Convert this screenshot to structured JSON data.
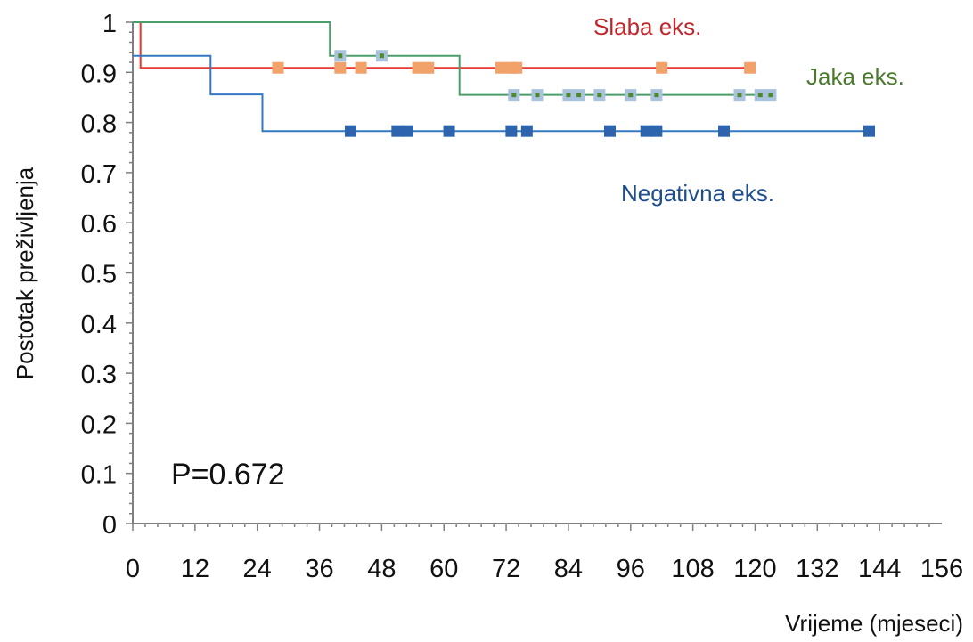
{
  "chart_data": {
    "type": "line",
    "title": "",
    "xlabel": "Vrijeme (mjeseci)",
    "ylabel": "Postotak preživljenja",
    "xlim": [
      0,
      156
    ],
    "ylim": [
      0,
      1
    ],
    "xticks": [
      0,
      12,
      24,
      36,
      48,
      60,
      72,
      84,
      96,
      108,
      120,
      132,
      144,
      156
    ],
    "yticks": [
      0,
      0.1,
      0.2,
      0.3,
      0.4,
      0.5,
      0.6,
      0.7,
      0.8,
      0.9,
      1
    ],
    "grid": false,
    "annotation": "P=0.672",
    "series": [
      {
        "name": "Slaba eks.",
        "color": "#e8382e",
        "marker_color": "#f0a26a",
        "step": [
          [
            0,
            1
          ],
          [
            1.5,
            1
          ],
          [
            1.5,
            0.909
          ],
          [
            119,
            0.909
          ]
        ],
        "censored": [
          [
            28,
            0.909
          ],
          [
            40,
            0.909
          ],
          [
            44,
            0.909
          ],
          [
            55,
            0.909
          ],
          [
            57,
            0.909
          ],
          [
            71,
            0.909
          ],
          [
            73,
            0.909
          ],
          [
            74,
            0.909
          ],
          [
            102,
            0.909
          ],
          [
            119,
            0.909
          ]
        ]
      },
      {
        "name": "Jaka eks.",
        "color": "#4a9e6b",
        "marker_color": "#a9c2de",
        "marker_center": "#4e8a2c",
        "step": [
          [
            0,
            1
          ],
          [
            38,
            1
          ],
          [
            38,
            0.933
          ],
          [
            63,
            0.933
          ],
          [
            63,
            0.855
          ],
          [
            123,
            0.855
          ]
        ],
        "censored": [
          [
            40,
            0.933
          ],
          [
            48,
            0.933
          ],
          [
            73.5,
            0.855
          ],
          [
            78,
            0.855
          ],
          [
            84,
            0.855
          ],
          [
            86,
            0.855
          ],
          [
            90,
            0.855
          ],
          [
            96,
            0.855
          ],
          [
            101,
            0.855
          ],
          [
            117,
            0.855
          ],
          [
            121,
            0.855
          ],
          [
            123,
            0.855
          ]
        ]
      },
      {
        "name": "Negativna eks.",
        "color": "#3478c2",
        "marker_color": "#2e64ad",
        "step": [
          [
            0,
            0.933
          ],
          [
            15,
            0.933
          ],
          [
            15,
            0.856
          ],
          [
            25,
            0.856
          ],
          [
            25,
            0.783
          ],
          [
            142,
            0.783
          ]
        ],
        "censored": [
          [
            42,
            0.783
          ],
          [
            51,
            0.783
          ],
          [
            53,
            0.783
          ],
          [
            61,
            0.783
          ],
          [
            73,
            0.783
          ],
          [
            76,
            0.783
          ],
          [
            92,
            0.783
          ],
          [
            99,
            0.783
          ],
          [
            101,
            0.783
          ],
          [
            114,
            0.783
          ],
          [
            142,
            0.783
          ]
        ]
      }
    ],
    "labels": [
      {
        "text": "Slaba eks.",
        "color": "#c0272d"
      },
      {
        "text": "Jaka eks.",
        "color": "#4a7a2c"
      },
      {
        "text": "Negativna eks.",
        "color": "#1f4e8c"
      }
    ]
  }
}
